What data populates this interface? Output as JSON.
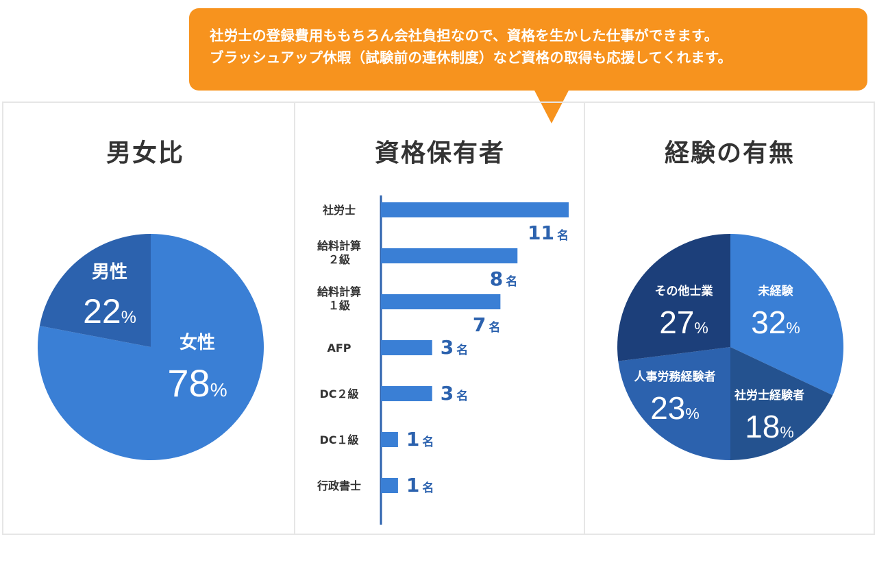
{
  "callout": {
    "line1": "社労士の登録費用ももちろん会社負担なので、資格を生かした仕事ができます。",
    "line2": "ブラッシュアップ休暇（試験前の連休制度）など資格の取得も応援してくれます。",
    "color": "#f7931e"
  },
  "panels": {
    "gender_title": "男女比",
    "qualification_title": "資格保有者",
    "experience_title": "経験の有無"
  },
  "chart_data": [
    {
      "type": "pie",
      "title": "男女比",
      "slices": [
        {
          "label": "女性",
          "value": 78,
          "unit": "%",
          "color": "#3a7fd5"
        },
        {
          "label": "男性",
          "value": 22,
          "unit": "%",
          "color": "#2c62ae"
        }
      ]
    },
    {
      "type": "bar",
      "orientation": "horizontal",
      "title": "資格保有者",
      "categories": [
        "社労士",
        "給料計算\n２級",
        "給料計算\n１級",
        "AFP",
        "DC２級",
        "DC１級",
        "行政書士"
      ],
      "values": [
        11,
        8,
        7,
        3,
        3,
        1,
        1
      ],
      "unit": "名",
      "xlim": [
        0,
        11
      ],
      "color": "#3a7fd5",
      "label_color": "#2c62ae"
    },
    {
      "type": "pie",
      "title": "経験の有無",
      "slices": [
        {
          "label": "未経験",
          "value": 32,
          "unit": "%",
          "color": "#3a7fd5"
        },
        {
          "label": "社労士経験者",
          "value": 18,
          "unit": "%",
          "color": "#24528f"
        },
        {
          "label": "人事労務経験者",
          "value": 23,
          "unit": "%",
          "color": "#2c62ae"
        },
        {
          "label": "その他士業",
          "value": 27,
          "unit": "%",
          "color": "#1c3f7a"
        }
      ]
    }
  ]
}
